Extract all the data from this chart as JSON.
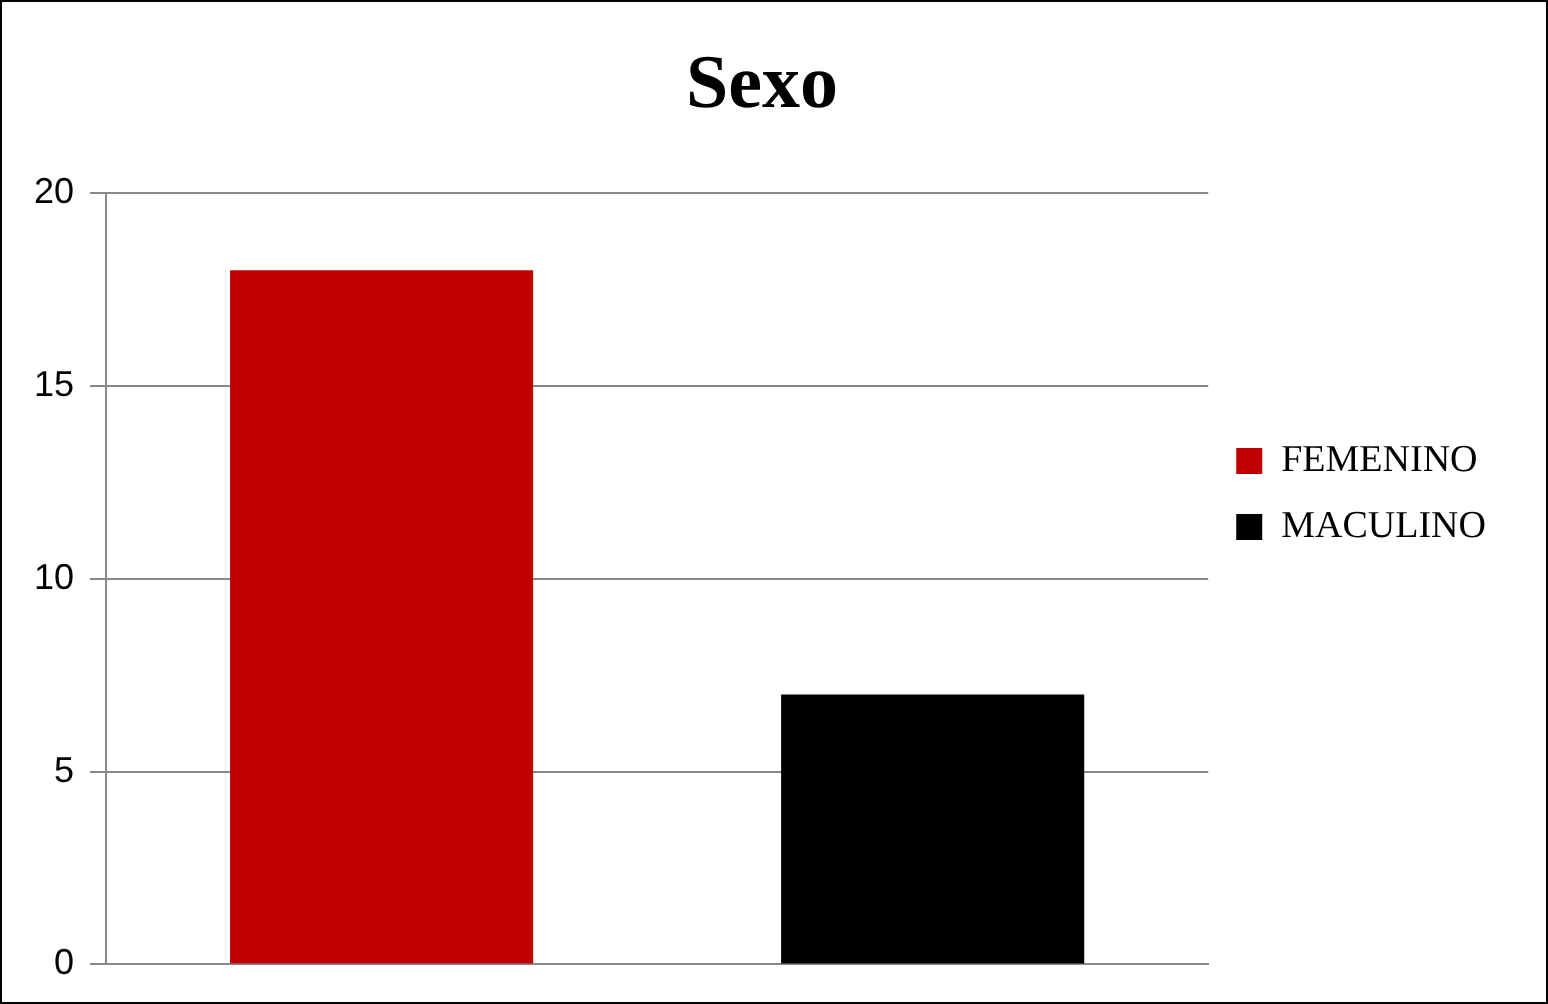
{
  "chart_data": {
    "type": "bar",
    "title": "Sexo",
    "categories": [
      null,
      null
    ],
    "series": [
      {
        "name": "FEMENINO",
        "color": "#c00000",
        "values": [
          18,
          null
        ]
      },
      {
        "name": "MACULINO",
        "color": "#000000",
        "values": [
          null,
          7
        ]
      }
    ],
    "ylim": [
      0,
      20
    ],
    "yticks": [
      0,
      5,
      10,
      15,
      20
    ],
    "grid": "y",
    "legend": "right",
    "tick_labels": "y"
  }
}
